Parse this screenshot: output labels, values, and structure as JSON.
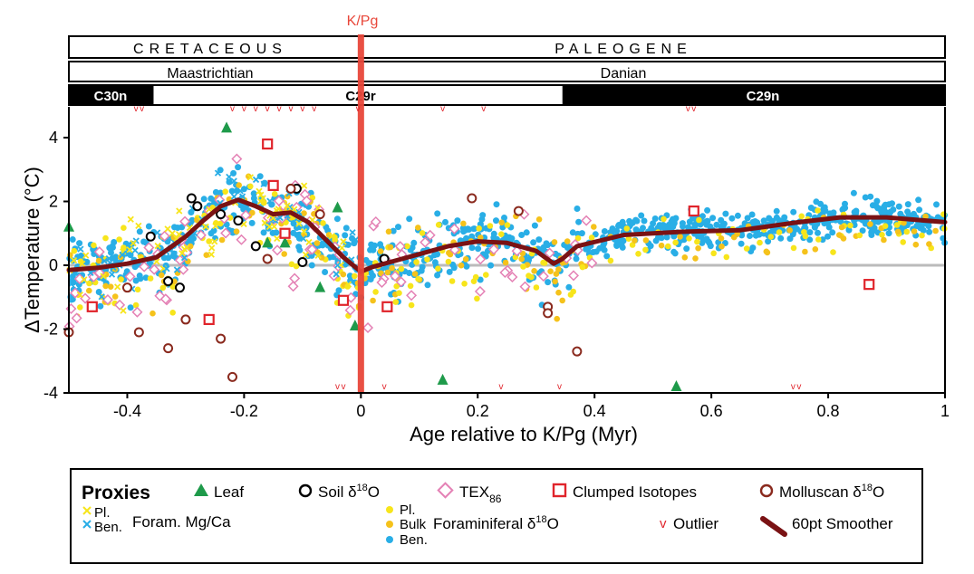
{
  "chart_data": {
    "type": "scatter",
    "xlabel": "Age relative to K/Pg (Myr)",
    "ylabel": "ΔTemperature (°C)",
    "xlim": [
      -0.5,
      1.0
    ],
    "ylim": [
      -4,
      5
    ],
    "x_ticks": [
      -0.4,
      -0.2,
      0,
      0.2,
      0.4,
      0.6,
      0.8,
      1
    ],
    "x_tick_labels": [
      "-0.4",
      "-0.2",
      "0",
      "0.2",
      "0.4",
      "0.6",
      "0.8",
      "1"
    ],
    "y_ticks": [
      -4,
      -2,
      0,
      2,
      4
    ],
    "y_tick_labels": [
      "-4",
      "-2",
      "0",
      "2",
      "4"
    ],
    "boundary": {
      "label": "K/Pg",
      "x": 0,
      "color": "#e8473a"
    },
    "periods": [
      {
        "label": "CRETACEOUS",
        "start": -0.5,
        "end": 0
      },
      {
        "label": "PALEOGENE",
        "start": 0,
        "end": 1
      }
    ],
    "stages": [
      {
        "label": "Maastrichtian",
        "start": -0.5,
        "end": 0
      },
      {
        "label": "Danian",
        "start": 0,
        "end": 1
      }
    ],
    "chrons": [
      {
        "label": "C30n",
        "start": -0.5,
        "end": -0.355,
        "fill": "black"
      },
      {
        "label": "C29r",
        "start": -0.355,
        "end": 0.345,
        "fill": "white"
      },
      {
        "label": "C29n",
        "start": 0.345,
        "end": 1.0,
        "fill": "black"
      }
    ],
    "legend": {
      "title": "Proxies",
      "leaf": "Leaf",
      "soil": "Soil δ",
      "soil_sup": "18",
      "soil_end": "O",
      "tex": "TEX",
      "tex_sub": "86",
      "clumped": "Clumped Isotopes",
      "mollusc": "Molluscan δ",
      "mollusc_sup": "18",
      "mollusc_end": "O",
      "mg_pl": "Pl.",
      "mg_ben": "Ben.",
      "mg_label": "Foram. Mg/Ca",
      "fo_pl": "Pl.",
      "fo_bulk": "Bulk",
      "fo_ben": "Ben.",
      "fo_label": "Foraminiferal δ",
      "fo_sup": "18",
      "fo_end": "O",
      "outlier": "Outlier",
      "smoother": "60pt Smoother"
    },
    "colors": {
      "leaf": "#1e9a4a",
      "ben": "#29aee6",
      "pl": "#f7e51b",
      "bulk": "#f5c21b",
      "tex": "#e481b5",
      "clumped": "#e0242b",
      "mollusc": "#8a2a1e",
      "soil": "#000000",
      "outlier": "#e0242b",
      "smoother": "#7a1214",
      "zero_line": "#bbbbbb"
    },
    "series": [
      {
        "name": "60pt Smoother",
        "kind": "line",
        "points": [
          [
            -0.5,
            -0.15
          ],
          [
            -0.45,
            -0.08
          ],
          [
            -0.4,
            0.05
          ],
          [
            -0.35,
            0.25
          ],
          [
            -0.3,
            0.9
          ],
          [
            -0.27,
            1.4
          ],
          [
            -0.24,
            1.85
          ],
          [
            -0.21,
            2.05
          ],
          [
            -0.18,
            1.85
          ],
          [
            -0.15,
            1.6
          ],
          [
            -0.12,
            1.65
          ],
          [
            -0.09,
            1.35
          ],
          [
            -0.06,
            0.8
          ],
          [
            -0.03,
            0.25
          ],
          [
            0,
            -0.2
          ],
          [
            0.02,
            -0.05
          ],
          [
            0.05,
            0.1
          ],
          [
            0.1,
            0.35
          ],
          [
            0.15,
            0.6
          ],
          [
            0.2,
            0.75
          ],
          [
            0.25,
            0.7
          ],
          [
            0.3,
            0.45
          ],
          [
            0.33,
            0.05
          ],
          [
            0.345,
            0.2
          ],
          [
            0.37,
            0.6
          ],
          [
            0.45,
            0.95
          ],
          [
            0.55,
            1.05
          ],
          [
            0.65,
            1.1
          ],
          [
            0.75,
            1.35
          ],
          [
            0.82,
            1.5
          ],
          [
            0.9,
            1.5
          ],
          [
            1.0,
            1.35
          ]
        ]
      },
      {
        "name": "Leaf",
        "kind": "marker",
        "points": [
          [
            -0.5,
            1.2
          ],
          [
            -0.23,
            4.3
          ],
          [
            -0.16,
            0.7
          ],
          [
            -0.13,
            0.7
          ],
          [
            -0.07,
            -0.7
          ],
          [
            -0.04,
            1.8
          ],
          [
            -0.01,
            -1.9
          ],
          [
            0.14,
            -3.6
          ],
          [
            0.54,
            -3.8
          ]
        ]
      },
      {
        "name": "Soil δ18O",
        "kind": "marker",
        "points": [
          [
            -0.36,
            0.9
          ],
          [
            -0.33,
            -0.5
          ],
          [
            -0.31,
            -0.7
          ],
          [
            -0.29,
            2.1
          ],
          [
            -0.28,
            1.85
          ],
          [
            -0.24,
            1.6
          ],
          [
            -0.21,
            1.4
          ],
          [
            -0.18,
            0.6
          ],
          [
            -0.11,
            2.4
          ],
          [
            -0.1,
            0.1
          ],
          [
            0.04,
            0.2
          ]
        ]
      },
      {
        "name": "Clumped Isotopes",
        "kind": "marker",
        "points": [
          [
            -0.46,
            -1.3
          ],
          [
            -0.26,
            -1.7
          ],
          [
            -0.16,
            3.8
          ],
          [
            -0.15,
            2.5
          ],
          [
            -0.13,
            1.0
          ],
          [
            -0.03,
            -1.1
          ],
          [
            0.045,
            -1.3
          ],
          [
            0.57,
            1.7
          ],
          [
            0.87,
            -0.6
          ]
        ]
      },
      {
        "name": "Molluscan δ18O",
        "kind": "marker",
        "points": [
          [
            -0.5,
            -2.1
          ],
          [
            -0.4,
            -0.7
          ],
          [
            -0.38,
            -2.1
          ],
          [
            -0.33,
            -2.6
          ],
          [
            -0.3,
            -1.7
          ],
          [
            -0.24,
            -2.3
          ],
          [
            -0.22,
            -3.5
          ],
          [
            -0.16,
            0.2
          ],
          [
            -0.12,
            2.4
          ],
          [
            -0.07,
            1.6
          ],
          [
            0.19,
            2.1
          ],
          [
            0.27,
            1.7
          ],
          [
            0.32,
            -1.3
          ],
          [
            0.32,
            -1.5
          ],
          [
            0.37,
            -2.7
          ]
        ]
      },
      {
        "name": "Outlier",
        "kind": "marker",
        "points": [
          [
            -0.385,
            4.92
          ],
          [
            -0.375,
            4.92
          ],
          [
            -0.22,
            4.92
          ],
          [
            -0.2,
            4.92
          ],
          [
            -0.18,
            4.92
          ],
          [
            -0.16,
            4.92
          ],
          [
            -0.14,
            4.92
          ],
          [
            -0.12,
            4.92
          ],
          [
            -0.1,
            4.92
          ],
          [
            -0.08,
            4.92
          ],
          [
            -0.005,
            4.92
          ],
          [
            0.14,
            4.92
          ],
          [
            0.21,
            4.92
          ],
          [
            0.56,
            4.92
          ],
          [
            0.57,
            4.92
          ],
          [
            -0.04,
            -3.92
          ],
          [
            -0.03,
            -3.92
          ],
          [
            0.04,
            -3.92
          ],
          [
            0.24,
            -3.92
          ],
          [
            0.34,
            -3.92
          ],
          [
            0.74,
            -3.92
          ],
          [
            0.75,
            -3.92
          ]
        ]
      }
    ]
  }
}
